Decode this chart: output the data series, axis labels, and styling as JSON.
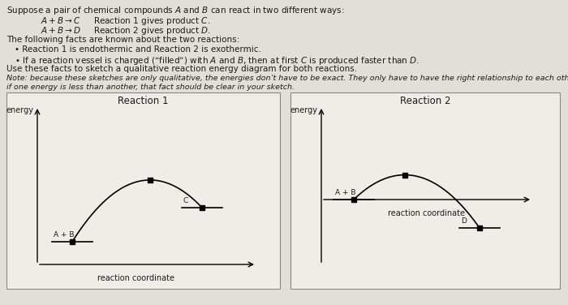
{
  "background_color": "#e2dfd8",
  "box_facecolor": "#f0ede8",
  "text_color": "#1a1a1a",
  "title_text": "Reaction 1",
  "title2_text": "Reaction 2",
  "ylabel": "energy",
  "xlabel": "reaction coordinate",
  "rxn1_label_ab": "A + B",
  "rxn1_label_c": "C",
  "rxn2_label_ab": "A + B",
  "rxn2_label_d": "D",
  "font_size_body": 7.5,
  "font_size_small": 6.8,
  "font_size_title": 8.5,
  "font_size_axis_label": 7,
  "font_size_diagram_label": 6.5,
  "marker_size": 4
}
